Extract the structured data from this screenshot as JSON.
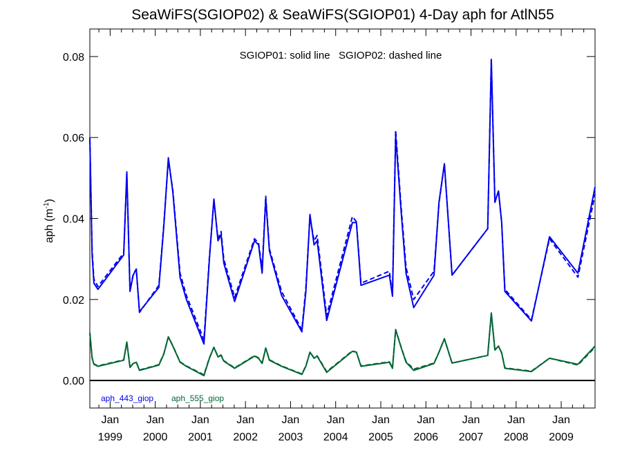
{
  "chart_data": {
    "type": "line",
    "title": "SeaWiFS(SGIOP02) & SeaWiFS(SGIOP01) 4-Day aph for AtlN55",
    "annotation": "SGIOP01: solid line   SGIOP02: dashed line",
    "ylabel": "aph (m",
    "ylabel_sup": "-1",
    "ylabel_close": ")",
    "xlim": [
      1998.55,
      2009.75
    ],
    "ylim": [
      -0.0068,
      0.0868
    ],
    "yticks": [
      0.0,
      0.02,
      0.04,
      0.06,
      0.08
    ],
    "ytick_labels": [
      "0.00",
      "0.02",
      "0.04",
      "0.06",
      "0.08"
    ],
    "xticks": [
      1999,
      2000,
      2001,
      2002,
      2003,
      2004,
      2005,
      2006,
      2007,
      2008,
      2009
    ],
    "xtick_month_labels": [
      "Jan",
      "Jan",
      "Jan",
      "Jan",
      "Jan",
      "Jan",
      "Jan",
      "Jan",
      "Jan",
      "Jan",
      "Jan"
    ],
    "xtick_year_labels": [
      "1999",
      "2000",
      "2001",
      "2002",
      "2003",
      "2004",
      "2005",
      "2006",
      "2007",
      "2008",
      "2009"
    ],
    "zero_line": true,
    "grid": false,
    "legend_position": "bottom-left",
    "series": [
      {
        "name": "aph_443_giop",
        "line_style": "solid",
        "color": "#0000ee",
        "x": [
          1998.55,
          1998.6,
          1998.64,
          1998.73,
          1999.3,
          1999.37,
          1999.44,
          1999.51,
          1999.58,
          1999.65,
          2000.08,
          2000.19,
          2000.29,
          2000.39,
          2000.55,
          2000.69,
          2001.08,
          2001.2,
          2001.3,
          2001.39,
          2001.46,
          2001.52,
          2001.76,
          2002.2,
          2002.29,
          2002.37,
          2002.45,
          2002.53,
          2002.8,
          2003.25,
          2003.34,
          2003.43,
          2003.52,
          2003.59,
          2003.8,
          2004.37,
          2004.46,
          2004.56,
          2005.19,
          2005.26,
          2005.33,
          2005.45,
          2005.56,
          2005.73,
          2006.18,
          2006.29,
          2006.41,
          2006.58,
          2007.37,
          2007.45,
          2007.53,
          2007.61,
          2007.68,
          2007.75,
          2008.34,
          2008.74,
          2009.37,
          2009.75
        ],
        "y": [
          0.06,
          0.031,
          0.024,
          0.0225,
          0.031,
          0.0515,
          0.022,
          0.026,
          0.0275,
          0.017,
          0.023,
          0.038,
          0.055,
          0.0465,
          0.0255,
          0.02,
          0.009,
          0.03,
          0.0448,
          0.0345,
          0.036,
          0.029,
          0.0195,
          0.0345,
          0.0335,
          0.0265,
          0.045,
          0.032,
          0.021,
          0.012,
          0.022,
          0.041,
          0.0335,
          0.0345,
          0.0148,
          0.039,
          0.039,
          0.0235,
          0.026,
          0.0208,
          0.0605,
          0.042,
          0.0265,
          0.018,
          0.026,
          0.044,
          0.0535,
          0.026,
          0.0375,
          0.0793,
          0.044,
          0.0468,
          0.039,
          0.022,
          0.0147,
          0.0355,
          0.0265,
          0.0478
        ]
      },
      {
        "name": "aph_443_giop",
        "line_style": "dashed",
        "color": "#0000ee",
        "x": [
          1998.55,
          1998.6,
          1998.64,
          1998.73,
          1999.3,
          1999.37,
          1999.44,
          1999.51,
          1999.58,
          1999.65,
          2000.08,
          2000.19,
          2000.29,
          2000.39,
          2000.55,
          2000.69,
          2001.08,
          2001.2,
          2001.3,
          2001.39,
          2001.46,
          2001.52,
          2001.76,
          2002.2,
          2002.29,
          2002.37,
          2002.45,
          2002.53,
          2002.8,
          2003.25,
          2003.34,
          2003.43,
          2003.52,
          2003.59,
          2003.8,
          2004.37,
          2004.46,
          2004.56,
          2005.19,
          2005.26,
          2005.33,
          2005.45,
          2005.56,
          2005.73,
          2006.18,
          2006.29,
          2006.41,
          2006.58,
          2007.37,
          2007.45,
          2007.53,
          2007.61,
          2007.68,
          2007.75,
          2008.34,
          2008.74,
          2009.37,
          2009.75
        ],
        "y": [
          0.0595,
          0.032,
          0.025,
          0.0232,
          0.0315,
          0.051,
          0.0225,
          0.0262,
          0.0275,
          0.0168,
          0.0235,
          0.0385,
          0.0545,
          0.047,
          0.0265,
          0.021,
          0.01,
          0.0305,
          0.0445,
          0.035,
          0.0368,
          0.03,
          0.0205,
          0.035,
          0.034,
          0.0275,
          0.0455,
          0.0325,
          0.022,
          0.0125,
          0.023,
          0.0405,
          0.0345,
          0.0358,
          0.016,
          0.0405,
          0.0392,
          0.024,
          0.027,
          0.021,
          0.0618,
          0.043,
          0.028,
          0.02,
          0.027,
          0.0438,
          0.0535,
          0.026,
          0.0375,
          0.079,
          0.044,
          0.0468,
          0.039,
          0.0225,
          0.015,
          0.035,
          0.0255,
          0.046
        ]
      },
      {
        "name": "aph_555_giop",
        "line_style": "solid",
        "color": "#006633",
        "x": [
          1998.55,
          1998.6,
          1998.64,
          1998.73,
          1999.3,
          1999.37,
          1999.44,
          1999.51,
          1999.58,
          1999.65,
          2000.08,
          2000.19,
          2000.29,
          2000.39,
          2000.55,
          2000.69,
          2001.08,
          2001.2,
          2001.3,
          2001.39,
          2001.46,
          2001.52,
          2001.76,
          2002.2,
          2002.29,
          2002.37,
          2002.45,
          2002.53,
          2002.8,
          2003.25,
          2003.34,
          2003.43,
          2003.52,
          2003.59,
          2003.8,
          2004.37,
          2004.46,
          2004.56,
          2005.19,
          2005.26,
          2005.33,
          2005.45,
          2005.56,
          2005.73,
          2006.18,
          2006.29,
          2006.41,
          2006.58,
          2007.37,
          2007.45,
          2007.53,
          2007.61,
          2007.68,
          2007.75,
          2008.34,
          2008.74,
          2009.37,
          2009.75
        ],
        "y": [
          0.0118,
          0.0055,
          0.004,
          0.0035,
          0.005,
          0.0095,
          0.0032,
          0.0042,
          0.0045,
          0.0025,
          0.0038,
          0.0065,
          0.0108,
          0.0085,
          0.0045,
          0.0035,
          0.0012,
          0.0055,
          0.0082,
          0.0058,
          0.0062,
          0.0048,
          0.003,
          0.006,
          0.0055,
          0.0042,
          0.008,
          0.005,
          0.0035,
          0.0015,
          0.0035,
          0.007,
          0.0055,
          0.006,
          0.002,
          0.0072,
          0.007,
          0.0035,
          0.0045,
          0.003,
          0.0125,
          0.0082,
          0.0045,
          0.0025,
          0.0042,
          0.007,
          0.0103,
          0.0043,
          0.0062,
          0.0167,
          0.0075,
          0.0085,
          0.0068,
          0.003,
          0.0022,
          0.0055,
          0.004,
          0.0085
        ]
      },
      {
        "name": "aph_555_giop",
        "line_style": "dashed",
        "color": "#006633",
        "x": [
          1998.55,
          1998.6,
          1998.64,
          1998.73,
          1999.3,
          1999.37,
          1999.44,
          1999.51,
          1999.58,
          1999.65,
          2000.08,
          2000.19,
          2000.29,
          2000.39,
          2000.55,
          2000.69,
          2001.08,
          2001.2,
          2001.3,
          2001.39,
          2001.46,
          2001.52,
          2001.76,
          2002.2,
          2002.29,
          2002.37,
          2002.45,
          2002.53,
          2002.8,
          2003.25,
          2003.34,
          2003.43,
          2003.52,
          2003.59,
          2003.8,
          2004.37,
          2004.46,
          2004.56,
          2005.19,
          2005.26,
          2005.33,
          2005.45,
          2005.56,
          2005.73,
          2006.18,
          2006.29,
          2006.41,
          2006.58,
          2007.37,
          2007.45,
          2007.53,
          2007.61,
          2007.68,
          2007.75,
          2008.34,
          2008.74,
          2009.37,
          2009.75
        ],
        "y": [
          0.0117,
          0.0056,
          0.0041,
          0.0036,
          0.0051,
          0.0094,
          0.0033,
          0.0042,
          0.0045,
          0.0026,
          0.0039,
          0.0066,
          0.0107,
          0.0086,
          0.0046,
          0.0036,
          0.0014,
          0.0056,
          0.0082,
          0.0059,
          0.0063,
          0.0049,
          0.0031,
          0.0061,
          0.0056,
          0.0043,
          0.008,
          0.0051,
          0.0036,
          0.0016,
          0.0036,
          0.007,
          0.0056,
          0.0061,
          0.0022,
          0.0073,
          0.007,
          0.0036,
          0.0046,
          0.0031,
          0.0126,
          0.0083,
          0.0047,
          0.0028,
          0.0043,
          0.007,
          0.0103,
          0.0043,
          0.0062,
          0.0165,
          0.0075,
          0.0085,
          0.0068,
          0.0031,
          0.0023,
          0.0055,
          0.0038,
          0.0082
        ]
      }
    ],
    "legend": [
      {
        "label": "aph_443_giop",
        "color": "#0000ee"
      },
      {
        "label": "aph_555_giop",
        "color": "#006633"
      }
    ]
  }
}
